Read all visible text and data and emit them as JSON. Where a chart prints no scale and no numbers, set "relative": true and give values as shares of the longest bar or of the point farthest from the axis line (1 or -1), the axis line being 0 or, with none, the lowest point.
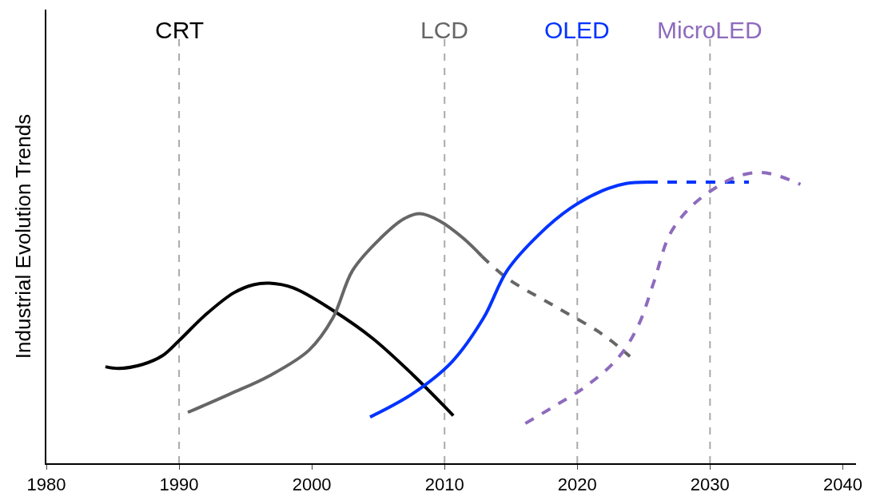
{
  "chart_data": {
    "type": "line",
    "relative": true,
    "ylabel": "Industrial Evolution Trends",
    "xlim": [
      1980,
      2041
    ],
    "xticks": [
      1980,
      1990,
      2000,
      2010,
      2020,
      2030,
      2040
    ],
    "grid": false,
    "legend": false,
    "marker": "none",
    "series": [
      {
        "name": "CRT",
        "color": "#000000",
        "line_style": "solid",
        "x": [
          1984.45,
          1985.46,
          1987.25,
          1988.75,
          1990,
          1992.03,
          1994.12,
          1995.61,
          1996.81,
          1998.6,
          2001.58,
          2004.57,
          2007.55,
          2010.66
        ],
        "values": [
          0.332,
          0.326,
          0.34,
          0.37,
          0.422,
          0.512,
          0.586,
          0.614,
          0.619,
          0.603,
          0.526,
          0.43,
          0.307,
          0.164
        ]
      },
      {
        "name": "LCD",
        "color": "#666666",
        "line_style": "solid",
        "x": [
          1990.66,
          1993.82,
          1996.81,
          1999.79,
          2001.58,
          2003.07,
          2005.16,
          2006.96,
          2008.15,
          2009.64,
          2011.43,
          2012.81
        ],
        "values": [
          0.175,
          0.238,
          0.301,
          0.389,
          0.499,
          0.663,
          0.773,
          0.841,
          0.858,
          0.833,
          0.773,
          0.712
        ]
      },
      {
        "color": "#666666",
        "line_style": "dashed",
        "x": [
          2012.81,
          2014.72,
          2018.3,
          2021.88,
          2023.97
        ],
        "values": [
          0.712,
          0.636,
          0.54,
          0.444,
          0.367
        ]
      },
      {
        "name": "OLED",
        "color": "#0033ff",
        "line_style": "solid",
        "x": [
          2004.39,
          2007.55,
          2010.54,
          2012.93,
          2014.72,
          2017.1,
          2019.49,
          2021.88,
          2023.67,
          2025.34
        ],
        "values": [
          0.159,
          0.238,
          0.348,
          0.499,
          0.663,
          0.786,
          0.877,
          0.937,
          0.962,
          0.967
        ]
      },
      {
        "color": "#0033ff",
        "line_style": "dashed",
        "x": [
          2025.34,
          2032.93
        ],
        "values": [
          0.967,
          0.967
        ]
      },
      {
        "name": "MicroLED",
        "color": "#8e6bbd",
        "line_style": "dashed",
        "x": [
          2016.09,
          2018.3,
          2020.69,
          2023.07,
          2024.57,
          2025.76,
          2026.96,
          2028.45,
          2030.24,
          2032.03,
          2033.82,
          2035.31,
          2036.81
        ],
        "values": [
          0.137,
          0.197,
          0.266,
          0.362,
          0.471,
          0.622,
          0.786,
          0.877,
          0.942,
          0.986,
          1,
          0.986,
          0.959
        ]
      }
    ],
    "ref_lines": [
      {
        "axis": "x",
        "value": 1990,
        "color": "#aaaaaa",
        "line_style": "dashed"
      },
      {
        "axis": "x",
        "value": 2010,
        "color": "#aaaaaa",
        "line_style": "dashed"
      },
      {
        "axis": "x",
        "value": 2020,
        "color": "#aaaaaa",
        "line_style": "dashed"
      },
      {
        "axis": "x",
        "value": 2030,
        "color": "#aaaaaa",
        "line_style": "dashed"
      }
    ]
  }
}
